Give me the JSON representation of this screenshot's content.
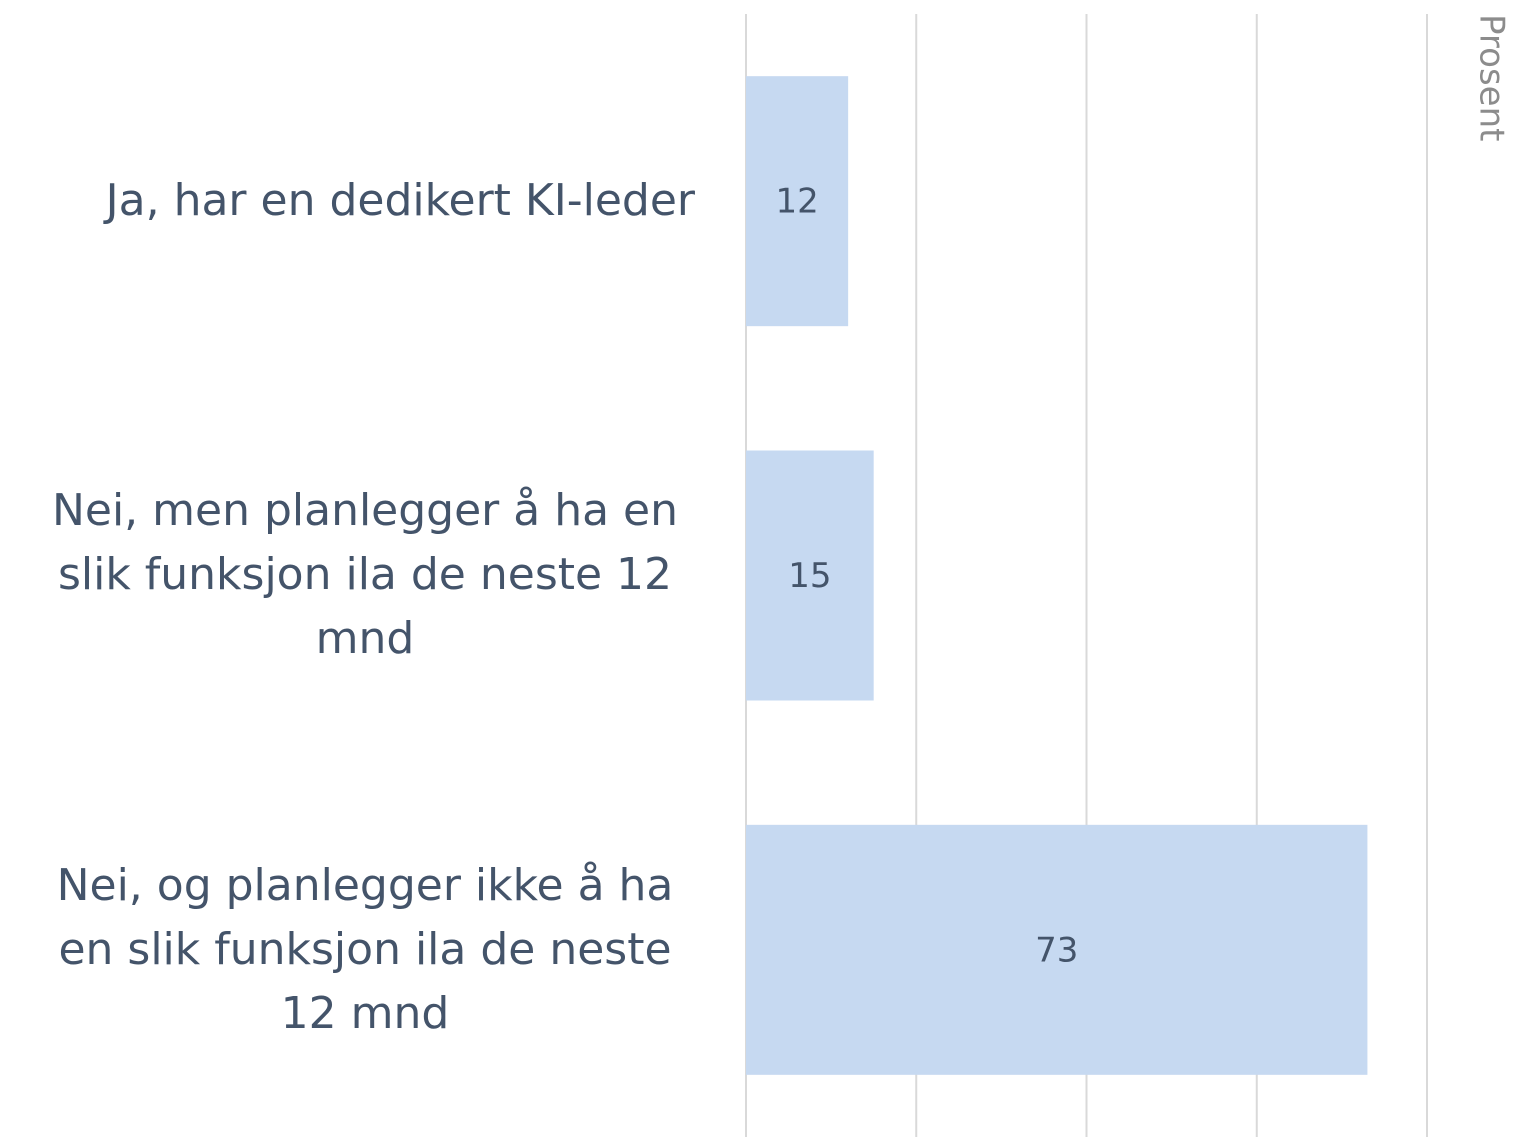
{
  "chart_data": {
    "type": "bar",
    "orientation": "horizontal",
    "categories": [
      "Ja, har en dedikert KI-leder",
      "Nei, men planlegger å ha en slik funksjon ila de neste 12 mnd",
      "Nei, og planlegger ikke å ha en slik funksjon ila de neste 12 mnd"
    ],
    "values": [
      12,
      15,
      73
    ],
    "color": "#c6d9f1",
    "xlabel": "Prosent",
    "xlim": [
      0,
      80
    ],
    "xticks": [
      0,
      20,
      40,
      60,
      80
    ],
    "grid": true
  }
}
